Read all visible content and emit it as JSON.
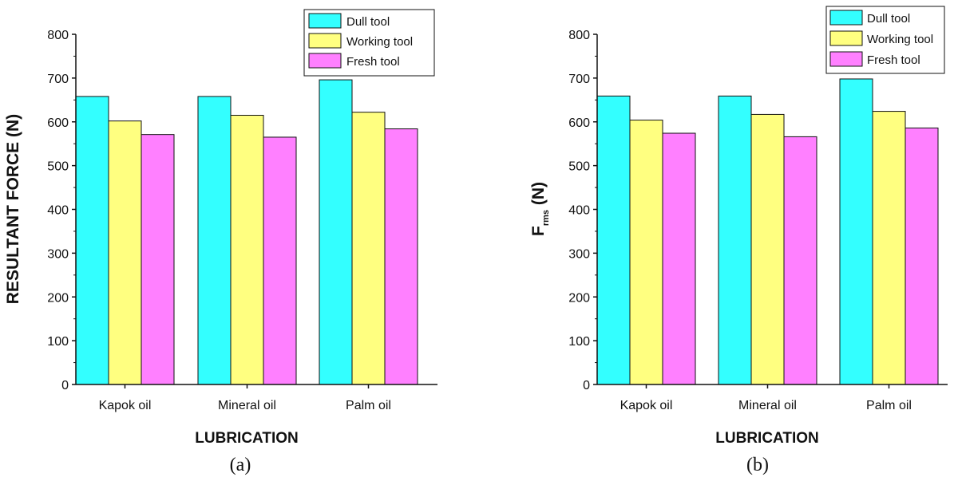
{
  "colors": {
    "dull": "#33FFFF",
    "working": "#FFFF80",
    "fresh": "#FF80FF",
    "axis": "#111111"
  },
  "chart_data": [
    {
      "type": "bar",
      "panel_label": "(a)",
      "categories": [
        "Kapok oil",
        "Mineral oil",
        "Palm oil"
      ],
      "series": [
        {
          "name": "Dull tool",
          "values": [
            658,
            658,
            696
          ]
        },
        {
          "name": "Working tool",
          "values": [
            602,
            615,
            622
          ]
        },
        {
          "name": "Fresh tool",
          "values": [
            571,
            565,
            584
          ]
        }
      ],
      "xlabel": "LUBRICATION",
      "ylabel": "RESULTANT FORCE (N)",
      "ylim": [
        0,
        800
      ],
      "yticks": [
        "0",
        "100",
        "200",
        "300",
        "400",
        "500",
        "600",
        "700",
        "800"
      ],
      "grid": false,
      "legend": "top-right"
    },
    {
      "type": "bar",
      "panel_label": "(b)",
      "categories": [
        "Kapok oil",
        "Mineral oil",
        "Palm oil"
      ],
      "series": [
        {
          "name": "Dull tool",
          "values": [
            659,
            659,
            698
          ]
        },
        {
          "name": "Working tool",
          "values": [
            604,
            617,
            624
          ]
        },
        {
          "name": "Fresh tool",
          "values": [
            574,
            566,
            586
          ]
        }
      ],
      "xlabel": "LUBRICATION",
      "ylabel_main": "F",
      "ylabel_sub": "rms",
      "ylabel_unit": " (N)",
      "ylim": [
        0,
        800
      ],
      "yticks": [
        "0",
        "100",
        "200",
        "300",
        "400",
        "500",
        "600",
        "700",
        "800"
      ],
      "grid": false,
      "legend": "top-right"
    }
  ]
}
